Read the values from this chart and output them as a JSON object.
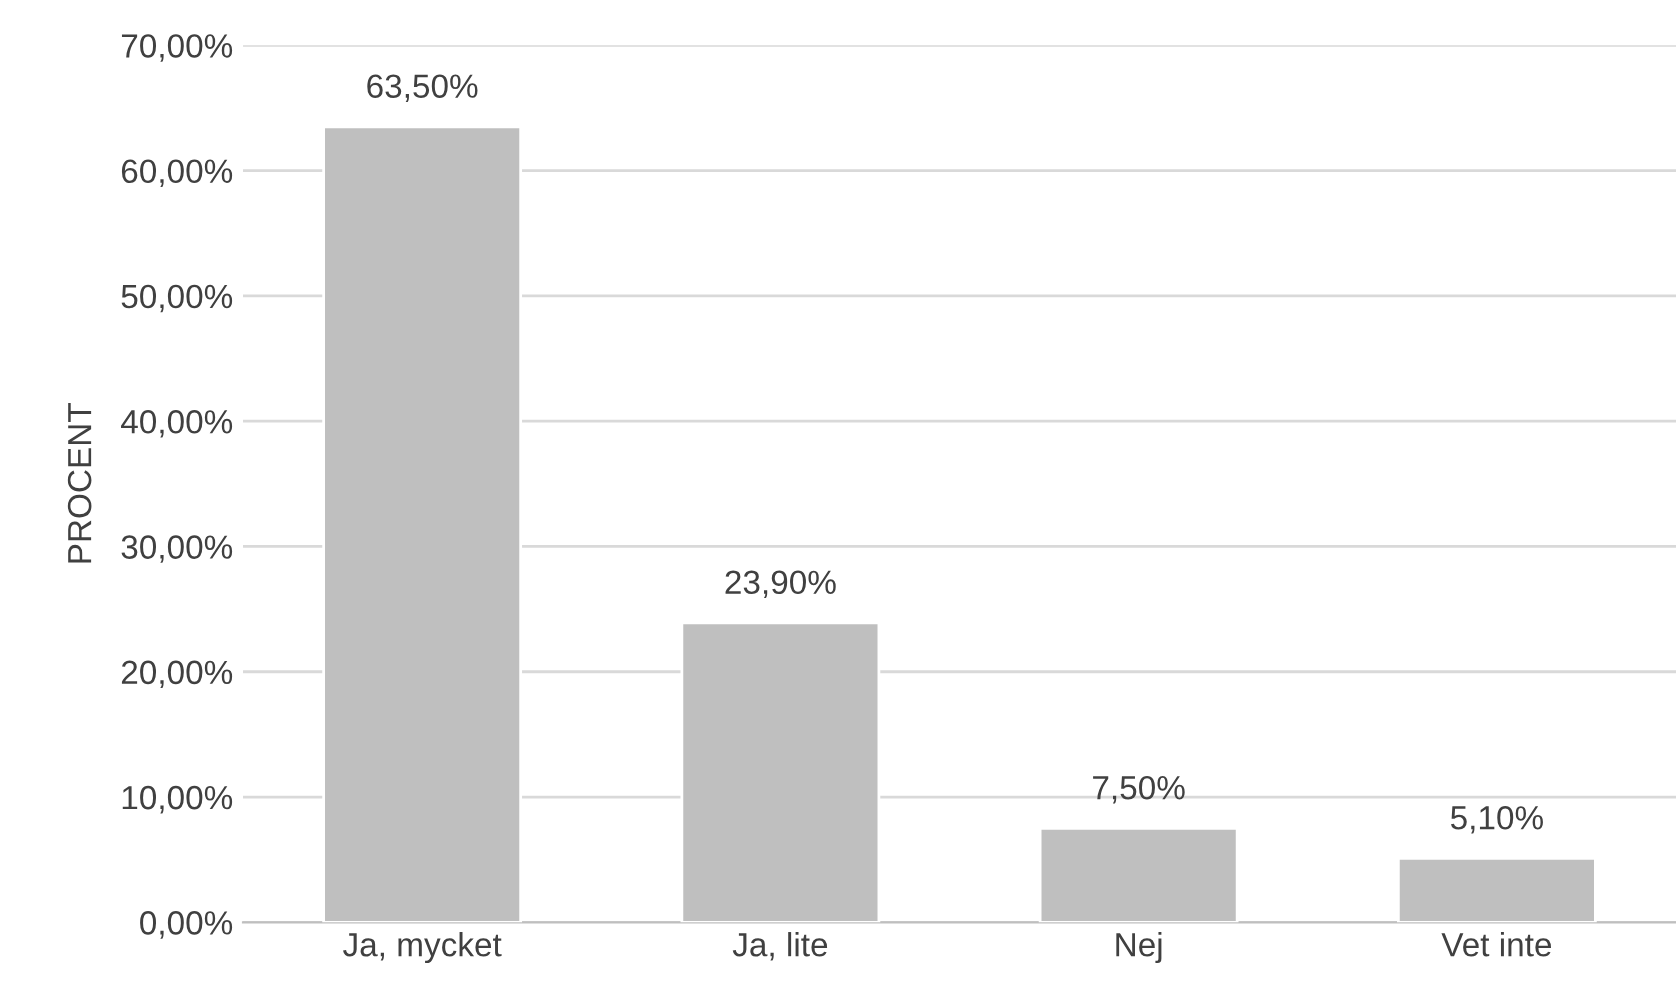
{
  "chart_data": {
    "type": "bar",
    "ylabel": "PROCENT",
    "categories": [
      "Ja, mycket",
      "Ja, lite",
      "Nej",
      "Vet inte"
    ],
    "values": [
      63.5,
      23.9,
      7.5,
      5.1
    ],
    "value_labels": [
      "63,50%",
      "23,90%",
      "7,50%",
      "5,10%"
    ],
    "color": "#bfbfbf",
    "ylim": [
      0,
      70
    ],
    "yticks": [
      {
        "value": 0,
        "label": "0,00%"
      },
      {
        "value": 10,
        "label": "10,00%"
      },
      {
        "value": 20,
        "label": "20,00%"
      },
      {
        "value": 30,
        "label": "30,00%"
      },
      {
        "value": 40,
        "label": "40,00%"
      },
      {
        "value": 50,
        "label": "50,00%"
      },
      {
        "value": 60,
        "label": "60,00%"
      },
      {
        "value": 70,
        "label": "70,00%"
      }
    ],
    "grid": "y"
  }
}
